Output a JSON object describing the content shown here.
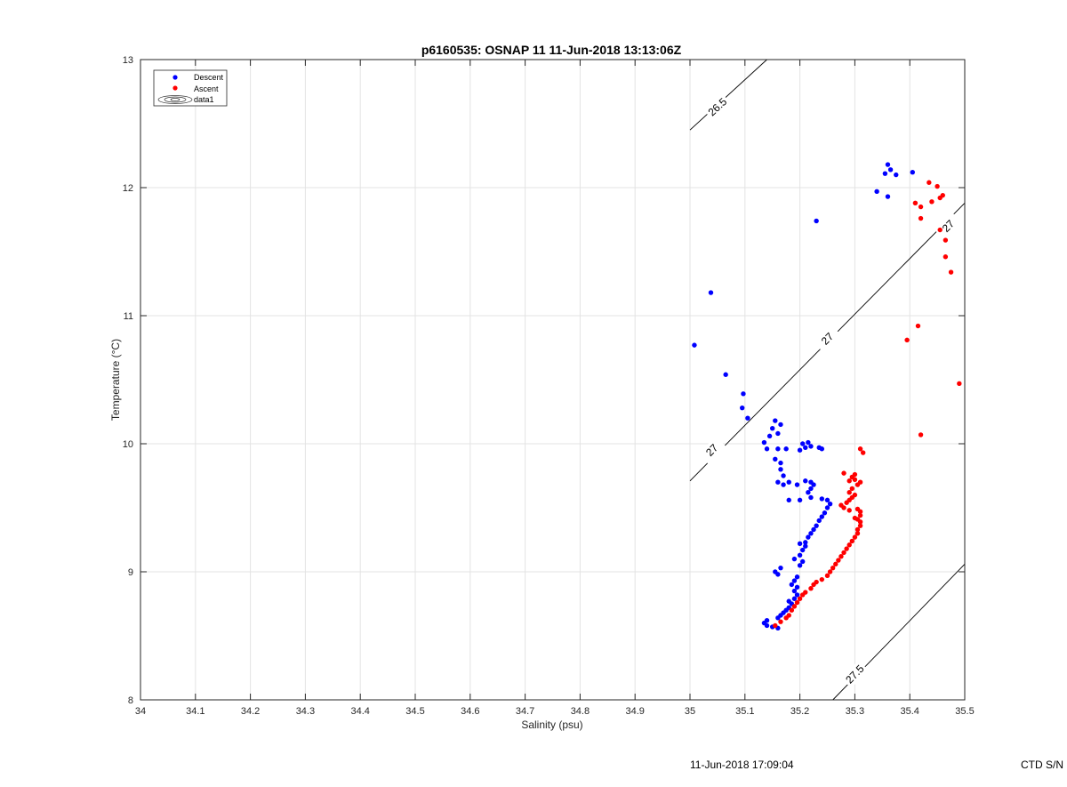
{
  "chart_data": {
    "type": "scatter",
    "title": "p6160535: OSNAP 11 11-Jun-2018 13:13:06Z",
    "xlabel": "Salinity (psu)",
    "ylabel": "Temperature (°C)",
    "xlim": [
      34,
      35.5
    ],
    "ylim": [
      8,
      13
    ],
    "xticks": [
      "34",
      "34.1",
      "34.2",
      "34.3",
      "34.4",
      "34.5",
      "34.6",
      "34.7",
      "34.8",
      "34.9",
      "35",
      "35.1",
      "35.2",
      "35.3",
      "35.4",
      "35.5"
    ],
    "yticks": [
      "8",
      "9",
      "10",
      "11",
      "12",
      "13"
    ],
    "grid": true,
    "legend_position": "top-left",
    "legend": [
      "Descent",
      "Ascent",
      "data1"
    ],
    "series": [
      {
        "name": "Descent",
        "color": "#0000ff",
        "points": [
          [
            35.16,
            8.56
          ],
          [
            35.15,
            8.57
          ],
          [
            35.14,
            8.58
          ],
          [
            35.135,
            8.6
          ],
          [
            35.14,
            8.62
          ],
          [
            35.16,
            8.64
          ],
          [
            35.165,
            8.66
          ],
          [
            35.17,
            8.68
          ],
          [
            35.175,
            8.7
          ],
          [
            35.18,
            8.72
          ],
          [
            35.185,
            8.75
          ],
          [
            35.18,
            8.77
          ],
          [
            35.19,
            8.79
          ],
          [
            35.195,
            8.82
          ],
          [
            35.19,
            8.85
          ],
          [
            35.195,
            8.88
          ],
          [
            35.185,
            8.9
          ],
          [
            35.19,
            8.93
          ],
          [
            35.195,
            8.96
          ],
          [
            35.16,
            8.98
          ],
          [
            35.155,
            9.0
          ],
          [
            35.165,
            9.03
          ],
          [
            35.2,
            9.05
          ],
          [
            35.205,
            9.08
          ],
          [
            35.19,
            9.1
          ],
          [
            35.2,
            9.13
          ],
          [
            35.205,
            9.17
          ],
          [
            35.21,
            9.2
          ],
          [
            35.21,
            9.23
          ],
          [
            35.2,
            9.22
          ],
          [
            35.215,
            9.27
          ],
          [
            35.22,
            9.3
          ],
          [
            35.225,
            9.33
          ],
          [
            35.23,
            9.36
          ],
          [
            35.235,
            9.4
          ],
          [
            35.24,
            9.43
          ],
          [
            35.245,
            9.46
          ],
          [
            35.25,
            9.5
          ],
          [
            35.255,
            9.53
          ],
          [
            35.25,
            9.56
          ],
          [
            35.24,
            9.57
          ],
          [
            35.2,
            9.56
          ],
          [
            35.18,
            9.56
          ],
          [
            35.22,
            9.58
          ],
          [
            35.215,
            9.62
          ],
          [
            35.22,
            9.65
          ],
          [
            35.225,
            9.68
          ],
          [
            35.22,
            9.7
          ],
          [
            35.21,
            9.71
          ],
          [
            35.195,
            9.68
          ],
          [
            35.18,
            9.7
          ],
          [
            35.17,
            9.68
          ],
          [
            35.16,
            9.7
          ],
          [
            35.17,
            9.75
          ],
          [
            35.165,
            9.8
          ],
          [
            35.165,
            9.85
          ],
          [
            35.155,
            9.88
          ],
          [
            35.14,
            9.96
          ],
          [
            35.16,
            9.96
          ],
          [
            35.175,
            9.96
          ],
          [
            35.2,
            9.95
          ],
          [
            35.21,
            9.97
          ],
          [
            35.22,
            9.98
          ],
          [
            35.235,
            9.97
          ],
          [
            35.24,
            9.96
          ],
          [
            35.205,
            10.0
          ],
          [
            35.215,
            10.01
          ],
          [
            35.135,
            10.01
          ],
          [
            35.145,
            10.06
          ],
          [
            35.16,
            10.08
          ],
          [
            35.15,
            10.12
          ],
          [
            35.165,
            10.15
          ],
          [
            35.155,
            10.18
          ],
          [
            35.105,
            10.2
          ],
          [
            35.095,
            10.28
          ],
          [
            35.097,
            10.39
          ],
          [
            35.065,
            10.54
          ],
          [
            35.008,
            10.77
          ],
          [
            35.038,
            11.18
          ],
          [
            35.23,
            11.74
          ],
          [
            35.34,
            11.97
          ],
          [
            35.36,
            11.93
          ],
          [
            35.355,
            12.11
          ],
          [
            35.36,
            12.18
          ],
          [
            35.365,
            12.14
          ],
          [
            35.375,
            12.1
          ],
          [
            35.405,
            12.12
          ]
        ]
      },
      {
        "name": "Ascent",
        "color": "#ff0000",
        "points": [
          [
            35.155,
            8.58
          ],
          [
            35.165,
            8.61
          ],
          [
            35.175,
            8.64
          ],
          [
            35.18,
            8.66
          ],
          [
            35.185,
            8.7
          ],
          [
            35.19,
            8.73
          ],
          [
            35.195,
            8.76
          ],
          [
            35.2,
            8.79
          ],
          [
            35.205,
            8.82
          ],
          [
            35.21,
            8.84
          ],
          [
            35.22,
            8.87
          ],
          [
            35.225,
            8.9
          ],
          [
            35.23,
            8.92
          ],
          [
            35.24,
            8.94
          ],
          [
            35.25,
            8.97
          ],
          [
            35.255,
            9.0
          ],
          [
            35.26,
            9.03
          ],
          [
            35.265,
            9.06
          ],
          [
            35.27,
            9.09
          ],
          [
            35.275,
            9.12
          ],
          [
            35.28,
            9.15
          ],
          [
            35.285,
            9.18
          ],
          [
            35.29,
            9.21
          ],
          [
            35.295,
            9.24
          ],
          [
            35.3,
            9.27
          ],
          [
            35.305,
            9.3
          ],
          [
            35.305,
            9.33
          ],
          [
            35.31,
            9.36
          ],
          [
            35.31,
            9.39
          ],
          [
            35.305,
            9.41
          ],
          [
            35.3,
            9.42
          ],
          [
            35.31,
            9.44
          ],
          [
            35.31,
            9.47
          ],
          [
            35.305,
            9.49
          ],
          [
            35.29,
            9.48
          ],
          [
            35.28,
            9.5
          ],
          [
            35.275,
            9.52
          ],
          [
            35.285,
            9.54
          ],
          [
            35.29,
            9.56
          ],
          [
            35.295,
            9.58
          ],
          [
            35.3,
            9.6
          ],
          [
            35.29,
            9.62
          ],
          [
            35.295,
            9.65
          ],
          [
            35.305,
            9.68
          ],
          [
            35.31,
            9.7
          ],
          [
            35.3,
            9.72
          ],
          [
            35.29,
            9.71
          ],
          [
            35.295,
            9.74
          ],
          [
            35.3,
            9.76
          ],
          [
            35.28,
            9.77
          ],
          [
            35.315,
            9.93
          ],
          [
            35.31,
            9.96
          ],
          [
            35.42,
            10.07
          ],
          [
            35.395,
            10.81
          ],
          [
            35.415,
            10.92
          ],
          [
            35.49,
            10.47
          ],
          [
            35.475,
            11.34
          ],
          [
            35.465,
            11.46
          ],
          [
            35.465,
            11.59
          ],
          [
            35.455,
            11.67
          ],
          [
            35.42,
            11.76
          ],
          [
            35.42,
            11.85
          ],
          [
            35.41,
            11.88
          ],
          [
            35.44,
            11.89
          ],
          [
            35.455,
            11.92
          ],
          [
            35.46,
            11.94
          ],
          [
            35.45,
            12.01
          ],
          [
            35.435,
            12.04
          ]
        ]
      }
    ],
    "contours": [
      {
        "label": "26.5",
        "color": "#000000",
        "endpoints": [
          [
            35.0,
            12.45
          ],
          [
            35.14,
            13.0
          ]
        ],
        "label_at": [
          35.05,
          12.63
        ]
      },
      {
        "label": "27",
        "color": "#000000",
        "endpoints": [
          [
            35.0,
            9.71
          ],
          [
            35.5,
            11.88
          ]
        ],
        "label_at": [
          [
            35.04,
            9.95
          ],
          [
            35.25,
            10.82
          ],
          [
            35.47,
            11.7
          ]
        ]
      },
      {
        "label": "27.5",
        "color": "#000000",
        "endpoints": [
          [
            35.26,
            8.0
          ],
          [
            35.5,
            9.06
          ]
        ],
        "label_at": [
          35.3,
          8.2
        ]
      }
    ]
  },
  "footer": {
    "date": "11-Jun-2018 17:09:04",
    "ctd": "CTD S/N"
  }
}
